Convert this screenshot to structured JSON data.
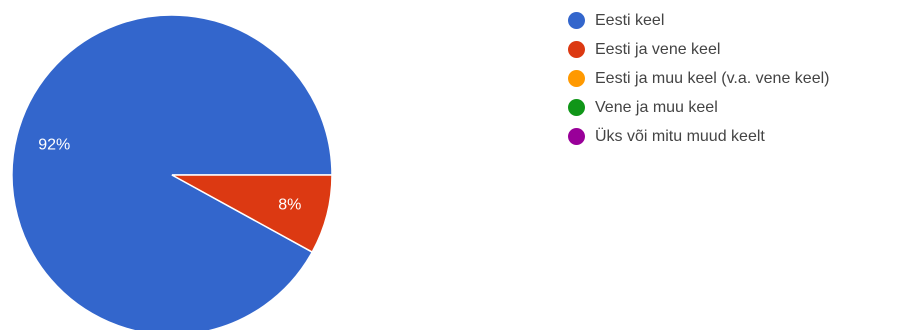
{
  "chart_data": {
    "type": "pie",
    "title": "",
    "categories": [
      "Eesti keel",
      "Eesti ja vene keel",
      "Eesti ja muu keel (v.a. vene keel)",
      "Vene ja muu keel",
      "Üks või mitu muud keelt"
    ],
    "values": [
      92,
      8,
      0,
      0,
      0
    ],
    "value_labels": [
      "92%",
      "8%",
      "",
      "",
      ""
    ],
    "colors": [
      "#3366cc",
      "#dc3912",
      "#ff9900",
      "#109618",
      "#990099"
    ],
    "legend_position": "right"
  }
}
